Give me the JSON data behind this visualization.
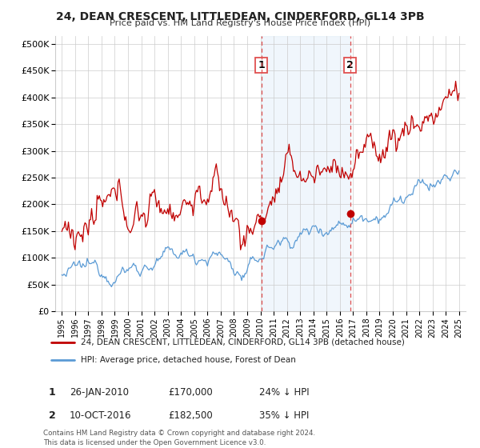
{
  "title": "24, DEAN CRESCENT, LITTLEDEAN, CINDERFORD, GL14 3PB",
  "subtitle": "Price paid vs. HM Land Registry's House Price Index (HPI)",
  "yticks": [
    0,
    50000,
    100000,
    150000,
    200000,
    250000,
    300000,
    350000,
    400000,
    450000,
    500000
  ],
  "ytick_labels": [
    "£0",
    "£50K",
    "£100K",
    "£150K",
    "£200K",
    "£250K",
    "£300K",
    "£350K",
    "£400K",
    "£450K",
    "£500K"
  ],
  "sale1_date": 2010.07,
  "sale1_price": 170000,
  "sale2_date": 2016.78,
  "sale2_price": 182500,
  "sale1_info": "26-JAN-2010",
  "sale1_amount": "£170,000",
  "sale1_hpi": "24% ↓ HPI",
  "sale2_info": "10-OCT-2016",
  "sale2_amount": "£182,500",
  "sale2_hpi": "35% ↓ HPI",
  "legend1": "24, DEAN CRESCENT, LITTLEDEAN, CINDERFORD, GL14 3PB (detached house)",
  "legend2": "HPI: Average price, detached house, Forest of Dean",
  "footnote": "Contains HM Land Registry data © Crown copyright and database right 2024.\nThis data is licensed under the Open Government Licence v3.0.",
  "hpi_color": "#5B9BD5",
  "price_color": "#C00000",
  "vline_color": "#E05050",
  "shade_color": "#D6E8F7",
  "background_color": "#FFFFFF",
  "grid_color": "#CCCCCC"
}
